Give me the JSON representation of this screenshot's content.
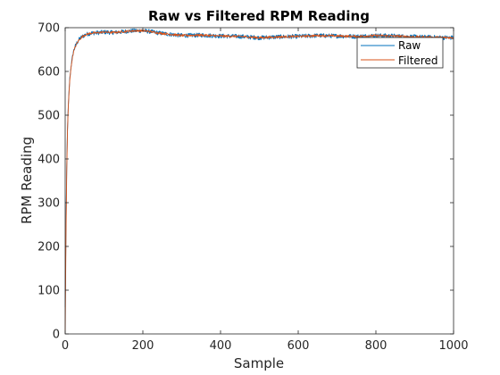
{
  "chart_data": {
    "type": "line",
    "title": "Raw vs Filtered RPM Reading",
    "xlabel": "Sample",
    "ylabel": "RPM Reading",
    "xlim": [
      0,
      1000
    ],
    "ylim": [
      0,
      700
    ],
    "xticks": [
      "0",
      "200",
      "400",
      "600",
      "800",
      "1000"
    ],
    "yticks": [
      "0",
      "100",
      "200",
      "300",
      "400",
      "500",
      "600",
      "700"
    ],
    "grid": false,
    "legend_position": "top-right",
    "colors": {
      "Raw": "#0072BD",
      "Filtered": "#D95319",
      "axes": "#262626"
    },
    "series": [
      {
        "name": "Raw",
        "x": [
          0,
          2,
          4,
          6,
          8,
          10,
          12,
          15,
          18,
          21,
          25,
          30,
          35,
          40,
          45,
          50,
          60,
          70,
          80,
          90,
          100,
          120,
          140,
          160,
          180,
          200,
          220,
          240,
          260,
          280,
          300,
          350,
          400,
          450,
          500,
          550,
          600,
          650,
          700,
          750,
          800,
          850,
          900,
          950,
          1000
        ],
        "y": [
          60,
          240,
          380,
          470,
          520,
          555,
          585,
          610,
          630,
          645,
          655,
          665,
          672,
          677,
          680,
          683,
          686,
          688,
          688,
          689,
          690,
          689,
          690,
          692,
          693,
          693,
          691,
          688,
          686,
          684,
          682,
          683,
          681,
          680,
          677,
          679,
          680,
          682,
          681,
          680,
          682,
          681,
          679,
          678,
          677
        ],
        "noise": 5
      },
      {
        "name": "Filtered",
        "x": [
          0,
          2,
          4,
          6,
          8,
          10,
          12,
          15,
          18,
          21,
          25,
          30,
          35,
          40,
          45,
          50,
          60,
          70,
          80,
          90,
          100,
          120,
          140,
          160,
          180,
          200,
          220,
          240,
          260,
          280,
          300,
          350,
          400,
          450,
          500,
          550,
          600,
          650,
          700,
          750,
          800,
          850,
          900,
          950,
          1000
        ],
        "y": [
          0,
          220,
          370,
          465,
          518,
          553,
          583,
          608,
          628,
          643,
          654,
          664,
          671,
          676,
          680,
          683,
          686,
          688,
          688,
          689,
          690,
          689,
          690,
          692,
          693,
          693,
          691,
          688,
          686,
          684,
          682,
          683,
          681,
          680,
          677,
          679,
          680,
          682,
          681,
          680,
          682,
          681,
          679,
          678,
          677
        ],
        "noise": 2.5
      }
    ]
  }
}
